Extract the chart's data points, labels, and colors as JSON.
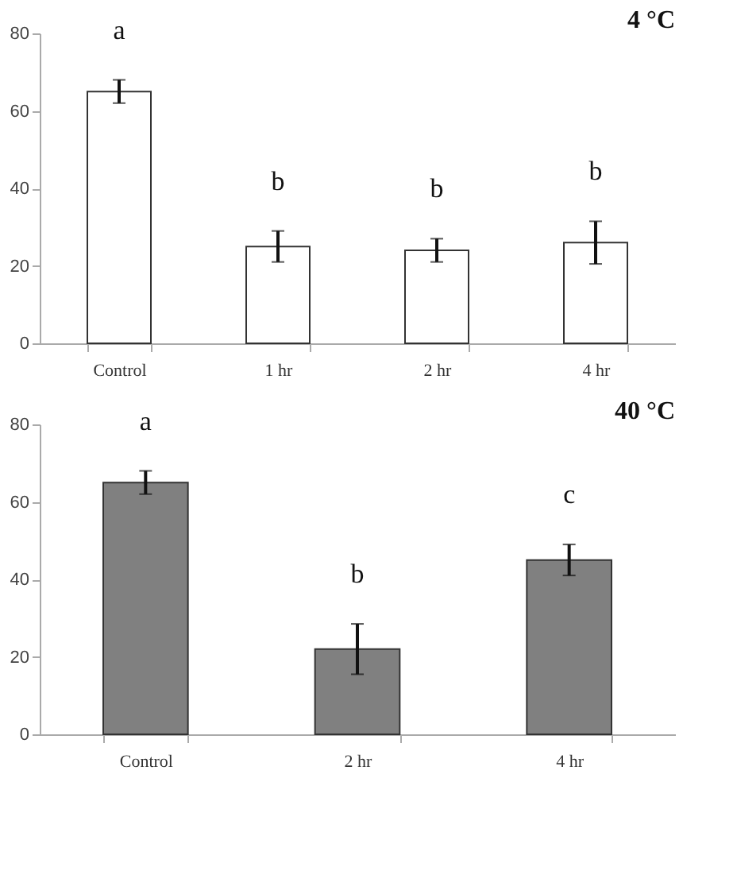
{
  "chart_data": [
    {
      "type": "bar",
      "title": "4 °C",
      "categories": [
        "Control",
        "1 hr",
        "2 hr",
        "4 hr"
      ],
      "values": [
        65,
        25,
        24,
        26
      ],
      "errors": [
        3,
        4,
        3,
        5.5
      ],
      "color": "#ffffff",
      "ylim": [
        0,
        80
      ],
      "yticks": [
        0,
        20,
        40,
        60,
        80
      ],
      "grid": false,
      "annotations": [
        "a",
        "b",
        "b",
        "b"
      ]
    },
    {
      "type": "bar",
      "title": "40 °C",
      "categories": [
        "Control",
        "2 hr",
        "4 hr"
      ],
      "values": [
        65,
        22,
        45
      ],
      "errors": [
        3,
        6.5,
        4
      ],
      "color": "#808080",
      "ylim": [
        0,
        80
      ],
      "yticks": [
        0,
        20,
        40,
        60,
        80
      ],
      "grid": false,
      "annotations": [
        "a",
        "b",
        "c"
      ]
    }
  ]
}
